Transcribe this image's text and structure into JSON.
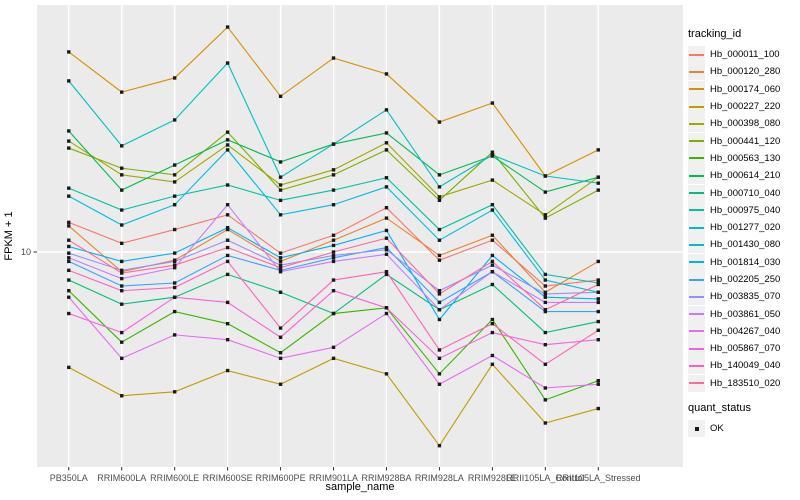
{
  "chart_data": {
    "type": "line",
    "title": "",
    "xlabel": "sample_name",
    "ylabel": "FPKM + 1",
    "x_categories": [
      "PB350LA",
      "RRIM600LA",
      "RRIM600LE",
      "RRIM600SE",
      "RRIM600PE",
      "RRIM901LA",
      "RRIM928BA",
      "RRIM928LA",
      "RRIM928LE",
      "RRII105LA_Control",
      "RRII105LA_Stressed"
    ],
    "y_scale": "log10",
    "y_domain": [
      1.49,
      89.1
    ],
    "y_ticks": [
      {
        "value": 10,
        "label": "10"
      }
    ],
    "grid": true,
    "legend_position": "right",
    "point_shape": "square",
    "point_color": "#1A1A1A",
    "series": [
      {
        "name": "Hb_000011_100",
        "color": "#F8766D",
        "values": [
          13.0,
          10.8,
          12.2,
          13.9,
          9.9,
          11.6,
          14.8,
          9.3,
          11.1,
          7.4,
          7.8
        ]
      },
      {
        "name": "Hb_000120_280",
        "color": "#EA8331",
        "values": [
          12.6,
          8.4,
          9.3,
          12.2,
          9.2,
          11.1,
          13.5,
          9.7,
          11.6,
          7.0,
          9.2
        ]
      },
      {
        "name": "Hb_000174_060",
        "color": "#D89000",
        "values": [
          58.8,
          41.2,
          46.7,
          73.3,
          39.7,
          55.7,
          48.4,
          31.6,
          37.4,
          19.6,
          24.7
        ]
      },
      {
        "name": "Hb_000227_220",
        "color": "#C09B00",
        "values": [
          3.6,
          2.8,
          2.9,
          3.5,
          3.1,
          3.9,
          3.4,
          1.8,
          3.7,
          2.2,
          2.5
        ]
      },
      {
        "name": "Hb_000398_080",
        "color": "#A3A500",
        "values": [
          26.7,
          19.8,
          18.6,
          25.8,
          18.1,
          20.7,
          26.3,
          16.3,
          18.9,
          13.9,
          19.4
        ]
      },
      {
        "name": "Hb_000441_120",
        "color": "#7CAE00",
        "values": [
          25.1,
          21.0,
          19.8,
          28.9,
          17.3,
          19.8,
          24.7,
          15.8,
          24.2,
          13.5,
          17.3
        ]
      },
      {
        "name": "Hb_000563_130",
        "color": "#39B600",
        "values": [
          7.1,
          4.5,
          5.9,
          5.3,
          4.1,
          5.8,
          6.1,
          3.4,
          5.5,
          2.7,
          3.2
        ]
      },
      {
        "name": "Hb_000614_210",
        "color": "#00BB4E",
        "values": [
          29.2,
          17.3,
          21.6,
          27.0,
          22.2,
          26.0,
          28.7,
          19.8,
          23.4,
          17.0,
          19.4
        ]
      },
      {
        "name": "Hb_000710_040",
        "color": "#00BF7D",
        "values": [
          7.8,
          6.3,
          6.7,
          8.2,
          7.0,
          5.8,
          8.2,
          6.0,
          7.5,
          4.9,
          5.4
        ]
      },
      {
        "name": "Hb_000975_040",
        "color": "#00C1A3",
        "values": [
          17.6,
          14.5,
          16.4,
          18.1,
          15.8,
          17.3,
          19.3,
          12.2,
          15.2,
          8.2,
          7.6
        ]
      },
      {
        "name": "Hb_001277_020",
        "color": "#00BFC4",
        "values": [
          45.5,
          25.6,
          32.2,
          53.3,
          19.4,
          26.0,
          35.2,
          17.8,
          23.6,
          19.6,
          18.4
        ]
      },
      {
        "name": "Hb_001430_080",
        "color": "#00BAE0",
        "values": [
          16.4,
          12.7,
          15.2,
          24.7,
          13.9,
          15.2,
          17.8,
          11.1,
          14.5,
          7.8,
          7.0
        ]
      },
      {
        "name": "Hb_001814_030",
        "color": "#00B0F6",
        "values": [
          10.5,
          9.2,
          9.9,
          12.4,
          9.5,
          10.6,
          12.1,
          5.5,
          9.7,
          6.7,
          6.6
        ]
      },
      {
        "name": "Hb_002205_250",
        "color": "#35A2FF",
        "values": [
          9.2,
          7.4,
          7.6,
          9.7,
          8.5,
          9.5,
          10.4,
          6.4,
          8.4,
          5.9,
          5.9
        ]
      },
      {
        "name": "Hb_003835_070",
        "color": "#9590FF",
        "values": [
          9.9,
          8.5,
          9.2,
          11.1,
          8.9,
          9.7,
          10.2,
          7.1,
          8.9,
          6.9,
          7.0
        ]
      },
      {
        "name": "Hb_003861_050",
        "color": "#C77CFF",
        "values": [
          9.5,
          7.9,
          8.7,
          15.2,
          8.4,
          9.2,
          9.8,
          6.0,
          8.4,
          6.4,
          6.4
        ]
      },
      {
        "name": "Hb_004267_040",
        "color": "#E76BF3",
        "values": [
          6.7,
          3.9,
          4.8,
          4.6,
          3.9,
          4.3,
          5.8,
          3.1,
          4.0,
          3.0,
          3.1
        ]
      },
      {
        "name": "Hb_005867_070",
        "color": "#FA62DB",
        "values": [
          5.8,
          4.9,
          6.7,
          6.4,
          4.7,
          7.1,
          6.1,
          3.9,
          4.9,
          4.4,
          4.6
        ]
      },
      {
        "name": "Hb_140049_040",
        "color": "#FF62BC",
        "values": [
          8.5,
          7.1,
          7.3,
          9.2,
          5.1,
          7.8,
          8.4,
          4.2,
          5.3,
          3.7,
          5.0
        ]
      },
      {
        "name": "Hb_183510_020",
        "color": "#FF6A98",
        "values": [
          11.1,
          8.3,
          8.9,
          10.4,
          8.7,
          10.0,
          11.3,
          6.9,
          9.2,
          6.0,
          7.5
        ]
      }
    ],
    "legend": {
      "color_title": "tracking_id",
      "shape_title": "quant_status",
      "shape_entries": [
        {
          "label": "OK",
          "shape": "square",
          "color": "#1A1A1A"
        }
      ]
    },
    "style": {
      "panel_bg": "#EBEBEB",
      "grid_color": "#FFFFFF",
      "tick_color": "#333333",
      "tick_label_color": "#4D4D4D",
      "axis_title_color": "#000000",
      "legend_key_bg": "#F0F0F0"
    }
  }
}
